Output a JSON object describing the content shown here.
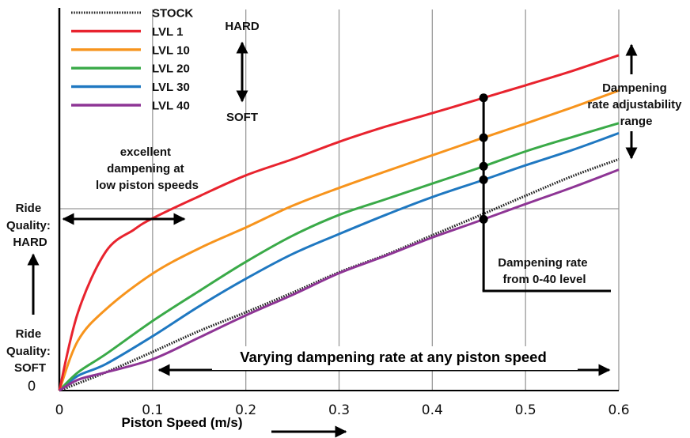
{
  "chart_data": {
    "type": "line",
    "xlabel": "Piston Speed (m/s)",
    "xlim": [
      0,
      0.6
    ],
    "x_ticks": [
      "0",
      "0.1",
      "0.2",
      "0.3",
      "0.4",
      "0.5",
      "0.6"
    ],
    "y_zero_label": "0",
    "grid": true,
    "legend_position": "top-left",
    "series": [
      {
        "name": "STOCK",
        "color": "#222222",
        "style": "dotted",
        "x": [
          0,
          0.05,
          0.1,
          0.15,
          0.2,
          0.25,
          0.3,
          0.35,
          0.4,
          0.45,
          0.5,
          0.55,
          0.6
        ],
        "y": [
          0,
          0.42,
          0.89,
          1.37,
          1.8,
          2.25,
          2.72,
          3.12,
          3.57,
          4.02,
          4.48,
          4.93,
          5.32
        ]
      },
      {
        "name": "LVL 1",
        "color": "#e8232e",
        "style": "solid",
        "x": [
          0,
          0.02,
          0.05,
          0.08,
          0.1,
          0.15,
          0.2,
          0.25,
          0.3,
          0.35,
          0.4,
          0.45,
          0.5,
          0.55,
          0.6
        ],
        "y": [
          0,
          1.8,
          3.2,
          3.7,
          3.96,
          4.47,
          4.95,
          5.32,
          5.72,
          6.07,
          6.38,
          6.7,
          7.02,
          7.35,
          7.71
        ]
      },
      {
        "name": "LVL 10",
        "color": "#f7941d",
        "style": "solid",
        "x": [
          0,
          0.02,
          0.05,
          0.1,
          0.15,
          0.2,
          0.25,
          0.3,
          0.35,
          0.4,
          0.45,
          0.5,
          0.55,
          0.6
        ],
        "y": [
          0,
          1.15,
          1.87,
          2.69,
          3.27,
          3.75,
          4.25,
          4.66,
          5.04,
          5.41,
          5.78,
          6.14,
          6.51,
          6.9
        ]
      },
      {
        "name": "LVL 20",
        "color": "#3aaa48",
        "style": "solid",
        "x": [
          0,
          0.02,
          0.05,
          0.1,
          0.15,
          0.2,
          0.25,
          0.3,
          0.35,
          0.4,
          0.45,
          0.5,
          0.55,
          0.6
        ],
        "y": [
          0,
          0.42,
          0.84,
          1.6,
          2.29,
          2.96,
          3.56,
          4.04,
          4.4,
          4.76,
          5.12,
          5.5,
          5.83,
          6.15
        ]
      },
      {
        "name": "LVL 30",
        "color": "#1f78c1",
        "style": "solid",
        "x": [
          0,
          0.02,
          0.05,
          0.1,
          0.15,
          0.2,
          0.25,
          0.3,
          0.35,
          0.4,
          0.45,
          0.5,
          0.55,
          0.6
        ],
        "y": [
          0,
          0.34,
          0.61,
          1.25,
          1.94,
          2.57,
          3.14,
          3.6,
          4.04,
          4.45,
          4.81,
          5.18,
          5.53,
          5.92
        ]
      },
      {
        "name": "LVL 40",
        "color": "#8e3595",
        "style": "solid",
        "x": [
          0,
          0.02,
          0.05,
          0.1,
          0.15,
          0.2,
          0.25,
          0.3,
          0.35,
          0.4,
          0.45,
          0.5,
          0.55,
          0.6
        ],
        "y": [
          0,
          0.25,
          0.42,
          0.72,
          1.22,
          1.73,
          2.2,
          2.7,
          3.1,
          3.52,
          3.9,
          4.29,
          4.67,
          5.08
        ]
      }
    ],
    "legend_scale": {
      "top": "HARD",
      "bottom": "SOFT"
    },
    "reference_x": 0.455,
    "annotations": {
      "low_speed": [
        "excellent",
        "dampening at",
        "low piston speeds"
      ],
      "ride_hard": [
        "Ride",
        "Quality:",
        "HARD"
      ],
      "ride_soft": [
        "Ride",
        "Quality:",
        "SOFT"
      ],
      "adjust_range": [
        "Dampening",
        "rate adjustability",
        "range"
      ],
      "rate_levels": [
        "Dampening rate",
        "from 0-40 level"
      ],
      "varying": "Varying dampening rate at any piston speed"
    }
  }
}
